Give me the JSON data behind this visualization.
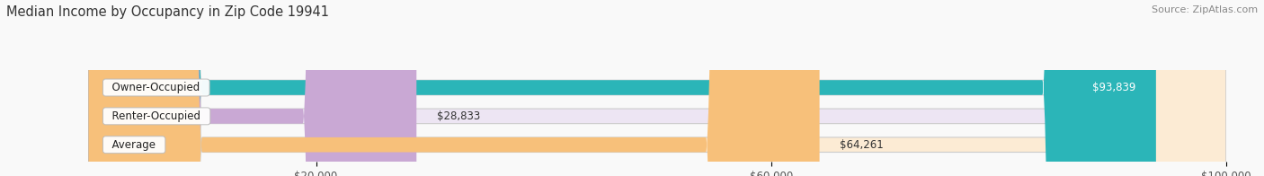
{
  "title": "Median Income by Occupancy in Zip Code 19941",
  "source": "Source: ZipAtlas.com",
  "categories": [
    "Owner-Occupied",
    "Renter-Occupied",
    "Average"
  ],
  "values": [
    93839,
    28833,
    64261
  ],
  "bar_colors": [
    "#2bb5b8",
    "#c9a8d4",
    "#f7c07a"
  ],
  "bar_bg_colors": [
    "#e0f4f5",
    "#ede5f3",
    "#fcebd4"
  ],
  "value_labels": [
    "$93,839",
    "$28,833",
    "$64,261"
  ],
  "value_inside": [
    true,
    false,
    false
  ],
  "xlim": [
    0,
    100000
  ],
  "xticks": [
    20000,
    60000,
    100000
  ],
  "xtick_labels": [
    "$20,000",
    "$60,000",
    "$100,000"
  ],
  "title_fontsize": 10.5,
  "source_fontsize": 8,
  "label_fontsize": 8.5,
  "value_fontsize": 8.5,
  "background_color": "#f9f9f9",
  "bar_height": 0.52
}
